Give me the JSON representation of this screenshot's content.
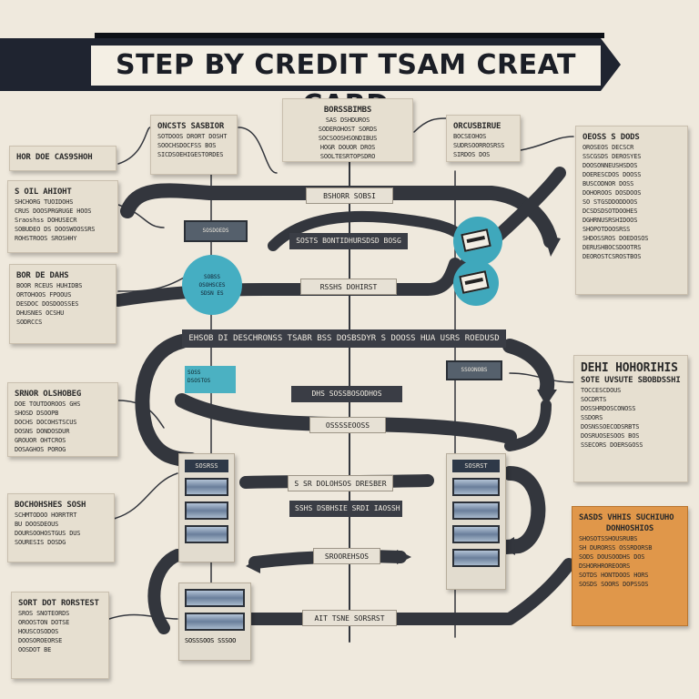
{
  "title": "STEP BY CREDIT TSAM CREAT CARD",
  "colors": {
    "background": "#efe9dd",
    "banner": "#1f2430",
    "arrow": "#33363d",
    "teal": "#45aec2",
    "orange": "#e0974a"
  },
  "cards": {
    "left_1": {
      "title": "HOR DOE CAS9SHOH",
      "lines": []
    },
    "left_2": {
      "title": "S OIL AHIOHT",
      "lines": [
        "SHCHORG TUOIDOHS",
        "CRUS DOOSPRGRUGE HOOS",
        "Sraoshss DOHUSECR",
        "SOBUDEO DS DOOSWOOSSRS",
        "ROHSTROOS SROSHHY"
      ]
    },
    "left_3": {
      "title": "BOR DE DAHS",
      "lines": [
        "BOOR RCEUS HUHIDBS",
        "ORTOHOOS FPOOUS",
        "DESDOC DOSDOOSSES",
        "DHUSNES OCSHU",
        "SODRCCS"
      ]
    },
    "left_4": {
      "title": "SRNOR OLSHOBEG",
      "lines": [
        "DOE TOUTDOROOS GHS",
        "SHOSD DSOOPB",
        "DOCHS DOCOHSTSCUS",
        "DOSNS DONDOSDUR",
        "GROUOR OHTCROS",
        "DOSAGHOS POROG"
      ]
    },
    "left_5": {
      "title": "BOCHOHSHES SOSH",
      "lines": [
        "SCHMTODOO HORRTRT",
        "BU DOOSDEOUS",
        "DOURSOOHOSTGUS DUS",
        "SOURESIS DOSDG"
      ]
    },
    "left_6": {
      "title": "SORT DOT RORSTEST",
      "lines": [
        "SROS SNOTEORDS",
        "OROOSTON DOTSE",
        "HOUSCOSODOS",
        "DOOSOROEORSE",
        "OOSDOT BE"
      ]
    },
    "top_1": {
      "title": "ONCSTS SASBIOR",
      "lines": [
        "SOTDOOS DRORT DOSHT",
        "SOOCHSDOCFSS BOS",
        "SICDSOEHIGESTORDES"
      ]
    },
    "top_2": {
      "title": "BORSSBIMBS",
      "lines": [
        "SAS DSHDUROS",
        "SODEROHOST SORDS",
        "SOCSOOSHSONDIBUS",
        "HOGR DOUOR DROS",
        "SOOLTESRTOPSDRO"
      ]
    },
    "top_3": {
      "title": "ORCUSBIRUE",
      "lines": [
        "BOCSEOHOS",
        "SUDRSOORROSRSS",
        "SIRDOS DOS"
      ]
    },
    "right_1": {
      "title": "OEOSS S DODS",
      "lines": [
        "OROSEOS DECSCR",
        "SSCGSDS DEROSYES",
        "DOOSONNEUSHSDOS",
        "DOERESCDOS DOOSS",
        "BUSCODNOR DOSS",
        "DOHOROOS DOSDOOS",
        "SO STGSDDODDOOS",
        "DCSDSDSOTDOOHES",
        "DGHRNUSRSHIDOOS",
        "SHOPOTDOOSRSS",
        "SHDOSSROS DOEDOSOS",
        "DERUSHBOCSDOOTRS",
        "DEOROSTCSROSTBOS"
      ]
    },
    "right_2": {
      "title": "DEHI HOHORIHIS SI",
      "subtitle": "SOTE UVSUTE SBOBDSSHIS",
      "lines": [
        "TOCCESCDOUS",
        "SOCDRTS",
        "DOSSHRDOSCONOSS",
        "SSDORS",
        "DOSNSSOECODSRBTS",
        "DOSRUOSESOOS BOS",
        "SSECORS DOERSGOSS"
      ]
    },
    "right_3": {
      "title": "SASDS VHHIS SUCHIUHO",
      "subtitle": "DONHOSHIOS",
      "lines": [
        "SHOSOTSSHOUSRUBS",
        "SH DURORSS OSSRDORSB",
        "SODS DOUSOODHS DOS",
        "DSHORHROREOORS",
        "SOTDS HONTDOOS HORS",
        "SOSDS SOORS DOPSSOS"
      ]
    }
  },
  "pills": {
    "p1": "BSHORR SOBSI",
    "p2": "SOSTS BONTIDHURSDSD BOSG",
    "p3": "RSSHS DOHIRST",
    "p4": "EHSOB DI DESCHRONSS TSABR BSS DOSBSDYR S DOOSS HUA USRS ROEDUSD",
    "p5": "DHS SOSSBOSODHOS",
    "p6": "OSSSSEOOSS",
    "p7": "S SR DOLOHSOS DRESBER",
    "p8": "SSHS DSBHSIE SRDI IAOSSH",
    "p9": "SROOREHSOS",
    "p10": "AIT TSNE SORSRST"
  },
  "nodes": {
    "circle_lines": [
      "SOBSS",
      "OSOHSCES",
      "SDSN ES"
    ],
    "teal_lines": [
      "SOSS",
      "DSOSTOS",
      "DSOS"
    ],
    "chip_top": "SOSDOEDS",
    "chip_right": "SSOONOBS"
  },
  "stacks": {
    "left_label": "SOSRSS",
    "right_label": "SOSRST",
    "bottom_caption": "SOSSSOOS SSSOO"
  },
  "icons": {
    "credit_card_a": "credit-card-icon",
    "credit_card_b": "credit-card-icon"
  }
}
